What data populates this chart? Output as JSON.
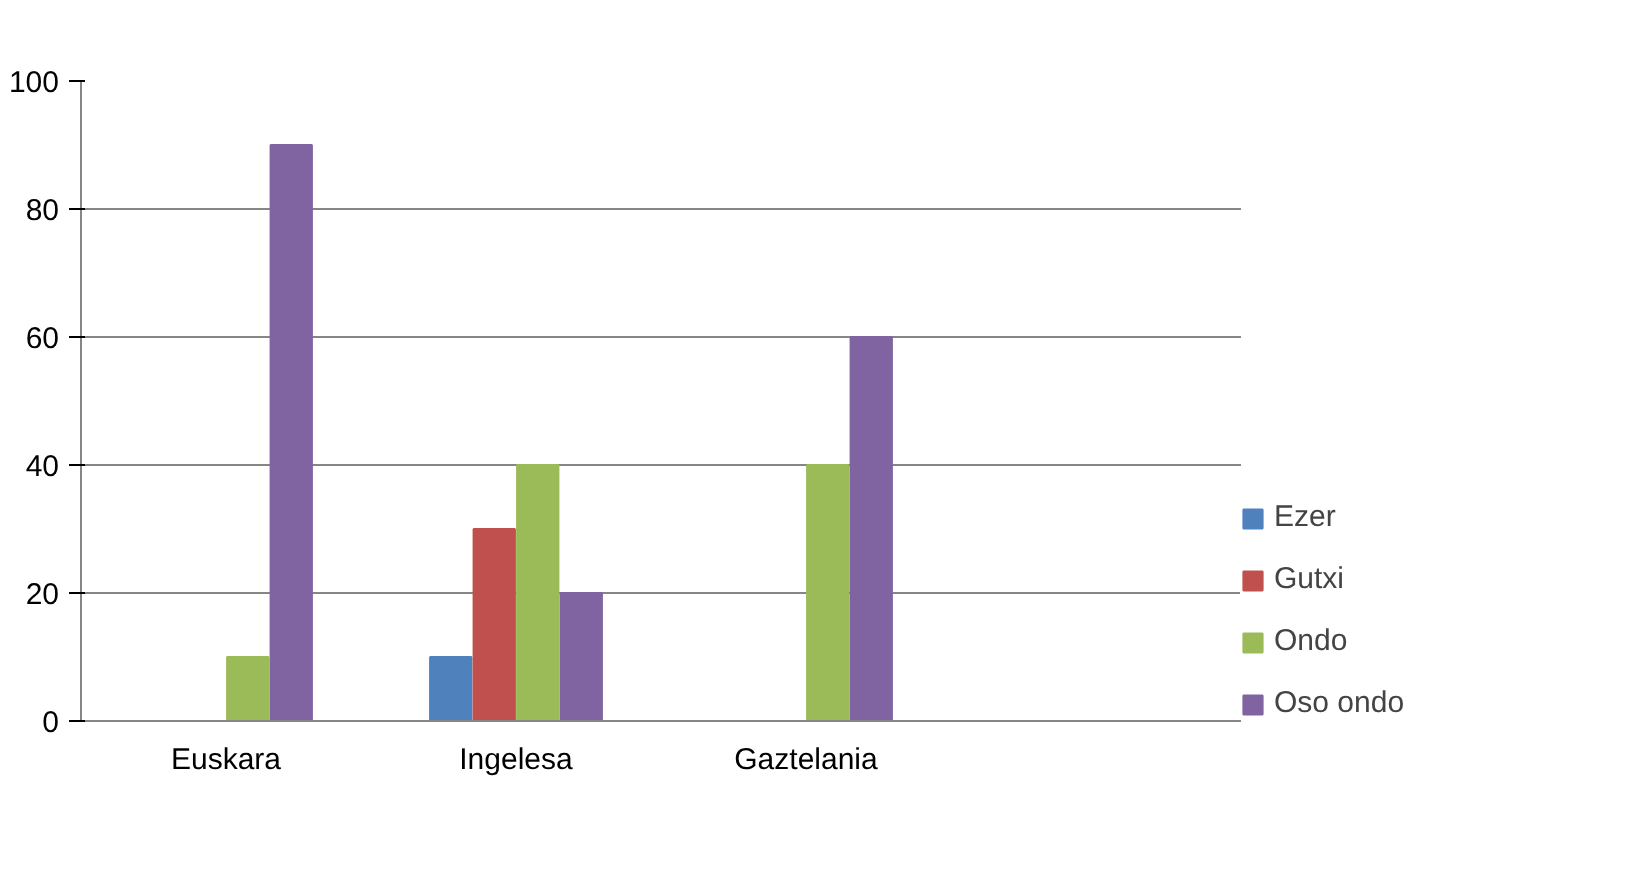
{
  "chart_data": {
    "type": "bar",
    "categories": [
      "Euskara",
      "Ingelesa",
      "Gaztelania",
      null
    ],
    "series": [
      {
        "name": "Ezer",
        "color": "#4f81bd",
        "values": [
          0,
          10,
          0,
          null
        ]
      },
      {
        "name": "Gutxi",
        "color": "#c0504d",
        "values": [
          0,
          30,
          0,
          null
        ]
      },
      {
        "name": "Ondo",
        "color": "#9bbb59",
        "values": [
          10,
          40,
          40,
          null
        ]
      },
      {
        "name": "Oso ondo",
        "color": "#8064a2",
        "values": [
          90,
          20,
          60,
          null
        ]
      }
    ],
    "ylim": [
      0,
      100
    ],
    "yticks": [
      0,
      20,
      40,
      60,
      80,
      100
    ],
    "grid": "y",
    "legend": "right"
  }
}
